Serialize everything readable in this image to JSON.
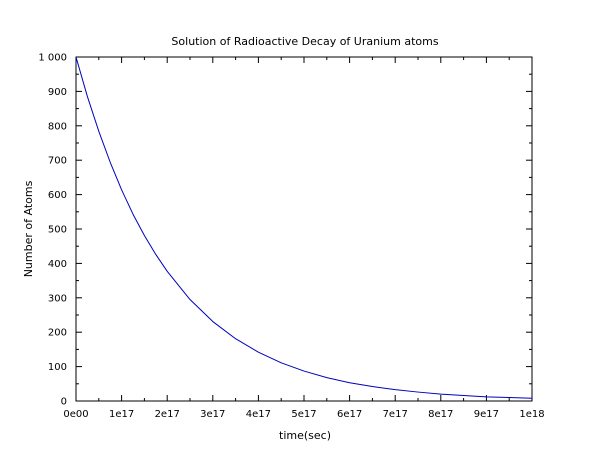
{
  "chart_data": {
    "type": "line",
    "title": "Solution of Radioactive Decay of Uranium atoms",
    "xlabel": "time(sec)",
    "ylabel": "Number of Atoms",
    "xlim": [
      0,
      1e+18
    ],
    "ylim": [
      0,
      1000
    ],
    "grid": false,
    "x_ticks": [
      {
        "value": 0,
        "label": "0e00"
      },
      {
        "value": 1e+17,
        "label": "1e17"
      },
      {
        "value": 2e+17,
        "label": "2e17"
      },
      {
        "value": 3e+17,
        "label": "3e17"
      },
      {
        "value": 4e+17,
        "label": "4e17"
      },
      {
        "value": 5e+17,
        "label": "5e17"
      },
      {
        "value": 6e+17,
        "label": "6e17"
      },
      {
        "value": 7e+17,
        "label": "7e17"
      },
      {
        "value": 8e+17,
        "label": "8e17"
      },
      {
        "value": 9e+17,
        "label": "9e17"
      },
      {
        "value": 1e+18,
        "label": "1e18"
      }
    ],
    "y_ticks": [
      {
        "value": 0,
        "label": "0"
      },
      {
        "value": 100,
        "label": "100"
      },
      {
        "value": 200,
        "label": "200"
      },
      {
        "value": 300,
        "label": "300"
      },
      {
        "value": 400,
        "label": "400"
      },
      {
        "value": 500,
        "label": "500"
      },
      {
        "value": 600,
        "label": "600"
      },
      {
        "value": 700,
        "label": "700"
      },
      {
        "value": 800,
        "label": "800"
      },
      {
        "value": 900,
        "label": "900"
      },
      {
        "value": 1000,
        "label": "1 000"
      }
    ],
    "series": [
      {
        "color": "#0000c0",
        "x": [
          0,
          2.5e+16,
          5e+16,
          7.5e+16,
          1e+17,
          1.25e+17,
          1.5e+17,
          1.75e+17,
          2e+17,
          2.5e+17,
          3e+17,
          3.5e+17,
          4e+17,
          4.5e+17,
          5e+17,
          5.5e+17,
          6e+17,
          6.5e+17,
          7e+17,
          7.5e+17,
          8e+17,
          8.5e+17,
          9e+17,
          9.5e+17,
          1e+18
        ],
        "y": [
          1000,
          885,
          784,
          694,
          614,
          543,
          481,
          426,
          377,
          295,
          231,
          181,
          142,
          111,
          87,
          68,
          53,
          42,
          33,
          26,
          20,
          16,
          12,
          10,
          8
        ]
      }
    ]
  }
}
